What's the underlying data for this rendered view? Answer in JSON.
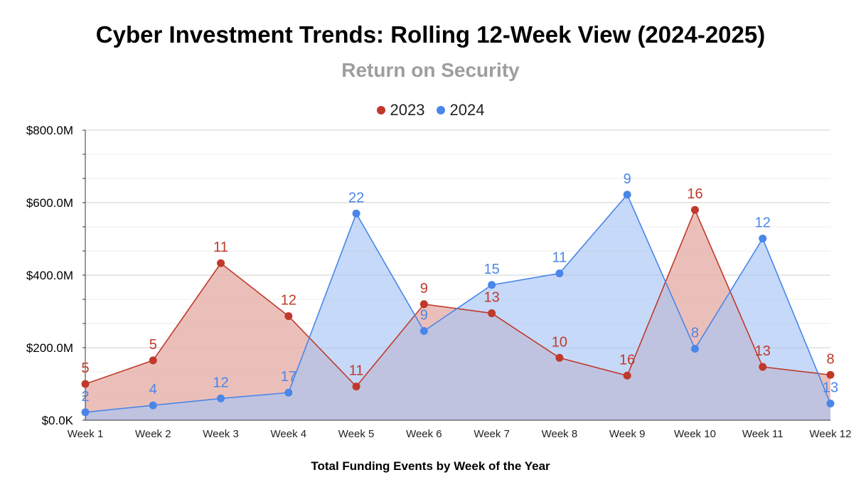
{
  "chart_data": {
    "type": "area",
    "title": "Cyber Investment Trends: Rolling 12-Week View (2024-2025)",
    "subtitle": "Return on Security",
    "xlabel": "Total Funding Events by Week of the Year",
    "ylabel": "",
    "ylim": [
      0,
      800
    ],
    "y_unit": "$M",
    "yticks": [
      0,
      200,
      400,
      600,
      800
    ],
    "ytick_labels": [
      "$0.0K",
      "$200.0M",
      "$400.0M",
      "$600.0M",
      "$800.0M"
    ],
    "grid": true,
    "legend_position": "top-center",
    "categories": [
      "Week 1",
      "Week 2",
      "Week 3",
      "Week 4",
      "Week 5",
      "Week 6",
      "Week 7",
      "Week 8",
      "Week 9",
      "Week 10",
      "Week 11",
      "Week 12"
    ],
    "series": [
      {
        "name": "2023",
        "color": "#c0392b",
        "fill": "#e8b4ad",
        "values": [
          100,
          165,
          433,
          287,
          93,
          320,
          295,
          172,
          123,
          580,
          147,
          125
        ],
        "labels": [
          "5",
          "5",
          "11",
          "12",
          "11",
          "9",
          "13",
          "10",
          "16",
          "16",
          "13",
          "8"
        ]
      },
      {
        "name": "2024",
        "color": "#4a86e8",
        "fill": "#a7c5f5",
        "values": [
          22,
          41,
          60,
          76,
          570,
          246,
          373,
          405,
          622,
          197,
          501,
          46
        ],
        "labels": [
          "2",
          "4",
          "12",
          "17",
          "22",
          "9",
          "15",
          "11",
          "9",
          "8",
          "12",
          "13"
        ]
      }
    ]
  }
}
